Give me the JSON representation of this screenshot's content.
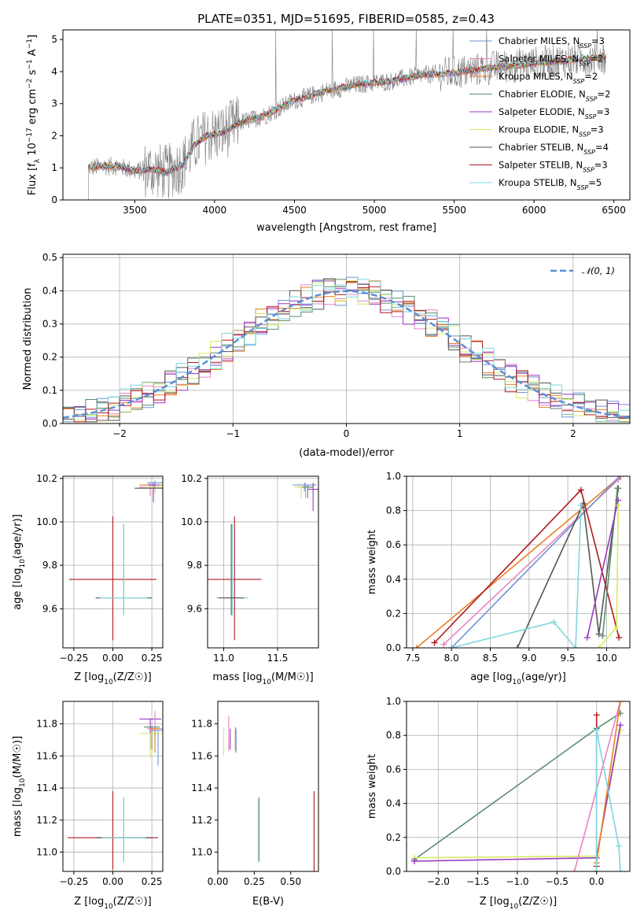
{
  "title": "PLATE=0351, MJD=51695, FIBERID=0585, z=0.43",
  "chart_data": [
    {
      "id": "spectrum",
      "type": "line",
      "xlabel": "wavelength [Angstrom, rest frame]",
      "ylabel": "Flux [f_λ 10^-17 erg cm^-2 s^-1 A^-1]",
      "xlim": [
        3050,
        6600
      ],
      "ylim": [
        0,
        5.3
      ],
      "xticks": [
        3500,
        4000,
        4500,
        5000,
        5500,
        6000,
        6500
      ],
      "yticks": [
        0,
        1,
        2,
        3,
        4,
        5
      ],
      "grid": false,
      "legend_position": "upper right",
      "data_line_color": "#808080",
      "model_continuum": {
        "x": [
          3210,
          3300,
          3400,
          3500,
          3600,
          3700,
          3800,
          3870,
          3950,
          4050,
          4150,
          4300,
          4500,
          4700,
          4900,
          5100,
          5300,
          5500,
          5700,
          5900,
          6100,
          6300,
          6450
        ],
        "y": [
          1.0,
          1.05,
          1.05,
          0.9,
          0.95,
          0.85,
          1.1,
          1.7,
          2.0,
          2.1,
          2.4,
          2.6,
          3.1,
          3.4,
          3.6,
          3.7,
          3.9,
          3.95,
          4.1,
          4.2,
          4.3,
          4.4,
          4.45
        ]
      },
      "series": [
        {
          "name": "Chabrier MILES, N_SSP=3",
          "color": "#6f95d3"
        },
        {
          "name": "Salpeter MILES, N_SSP=2",
          "color": "#e684c4"
        },
        {
          "name": "Kroupa MILES, N_SSP=2",
          "color": "#ea7f26"
        },
        {
          "name": "Chabrier ELODIE, N_SSP=2",
          "color": "#5a8a6a"
        },
        {
          "name": "Salpeter ELODIE, N_SSP=3",
          "color": "#9a38c4"
        },
        {
          "name": "Kroupa ELODIE, N_SSP=3",
          "color": "#d6ea62"
        },
        {
          "name": "Chabrier STELIB, N_SSP=4",
          "color": "#555555"
        },
        {
          "name": "Salpeter STELIB, N_SSP=3",
          "color": "#b2191d"
        },
        {
          "name": "Kroupa STELIB, N_SSP=5",
          "color": "#7fd6dd"
        }
      ]
    },
    {
      "id": "residuals",
      "type": "histogram",
      "xlabel": "(data-model)/error",
      "ylabel": "Normed distribution",
      "xlim": [
        -2.5,
        2.5
      ],
      "ylim": [
        0,
        0.51
      ],
      "xticks": [
        -2,
        -1,
        0,
        1,
        2
      ],
      "yticks": [
        0.0,
        0.1,
        0.2,
        0.3,
        0.4,
        0.5
      ],
      "grid": true,
      "legend_position": "upper right",
      "legend": "N(0,1)",
      "gauss_color": "#5b8fd6",
      "bin_width": 0.1
    },
    {
      "id": "age_vs_Z",
      "type": "errorbar",
      "xlabel": "Z [log10(Z/Z☉)]",
      "ylabel": "age [log10(age/yr)]",
      "xlim": [
        -0.32,
        0.32
      ],
      "ylim": [
        9.42,
        10.21
      ],
      "xticks": [
        -0.25,
        0.0,
        0.25
      ],
      "yticks": [
        9.6,
        9.8,
        10.0,
        10.2
      ],
      "grid": true,
      "points": [
        {
          "x": 0.0,
          "y": 9.735,
          "xerr": 0.28,
          "yerr": [
            0.28,
            0.29
          ],
          "color": "#b2191d"
        },
        {
          "x": 0.07,
          "y": 9.65,
          "xerr": 0.18,
          "yerr": [
            0.08,
            0.34
          ],
          "color": "#555555"
        },
        {
          "x": 0.07,
          "y": 9.65,
          "xerr": 0.15,
          "yerr": [
            0.08,
            0.34
          ],
          "color": "#7fd6dd"
        },
        {
          "x": 0.27,
          "y": 10.17,
          "xerr": 0.1,
          "yerr": [
            0.03,
            0.02
          ],
          "color": "#ea7f26"
        },
        {
          "x": 0.24,
          "y": 10.16,
          "xerr": 0.07,
          "yerr": [
            0.04,
            0.02
          ],
          "color": "#e684c4"
        },
        {
          "x": 0.26,
          "y": 10.17,
          "xerr": 0.04,
          "yerr": [
            0.08,
            0.01
          ],
          "color": "#9a38c4"
        },
        {
          "x": 0.27,
          "y": 10.16,
          "xerr": 0.06,
          "yerr": [
            0.03,
            0.02
          ],
          "color": "#d6ea62"
        },
        {
          "x": 0.25,
          "y": 10.155,
          "xerr": 0.11,
          "yerr": [
            0.0,
            0.0
          ],
          "color": "#555555"
        },
        {
          "x": 0.27,
          "y": 10.18,
          "xerr": 0.05,
          "yerr": [
            0.03,
            0.01
          ],
          "color": "#6f95d3"
        }
      ]
    },
    {
      "id": "age_vs_mass",
      "type": "errorbar",
      "xlabel": "mass [log10(M/M☉)]",
      "ylabel": "",
      "xlim": [
        10.85,
        11.88
      ],
      "ylim": [
        9.42,
        10.21
      ],
      "xticks": [
        11.0,
        11.5
      ],
      "yticks": [
        9.6,
        9.8,
        10.0,
        10.2
      ],
      "grid": true,
      "points": [
        {
          "x": 11.1,
          "y": 9.735,
          "xerr": 0.25,
          "yerr": [
            0.28,
            0.29
          ],
          "color": "#b2191d"
        },
        {
          "x": 11.08,
          "y": 9.65,
          "xerr": 0.15,
          "yerr": [
            0.08,
            0.34
          ],
          "color": "#7fd6dd"
        },
        {
          "x": 11.07,
          "y": 9.65,
          "xerr": 0.12,
          "yerr": [
            0.08,
            0.34
          ],
          "color": "#555555"
        },
        {
          "x": 11.75,
          "y": 10.17,
          "xerr": 0.11,
          "yerr": [
            0.03,
            0.01
          ],
          "color": "#6f95d3"
        },
        {
          "x": 11.76,
          "y": 10.16,
          "xerr": 0.07,
          "yerr": [
            0.05,
            0.02
          ],
          "color": "#e684c4"
        },
        {
          "x": 11.83,
          "y": 10.15,
          "xerr": 0.05,
          "yerr": [
            0.1,
            0.03
          ],
          "color": "#9a38c4"
        },
        {
          "x": 11.72,
          "y": 10.16,
          "xerr": 0.06,
          "yerr": [
            0.05,
            0.02
          ],
          "color": "#d6ea62"
        },
        {
          "x": 11.78,
          "y": 10.16,
          "xerr": 0.05,
          "yerr": [
            0.05,
            0.01
          ],
          "color": "#5a8a6a"
        }
      ]
    },
    {
      "id": "massweight_vs_age",
      "type": "line",
      "xlabel": "age [log10(age/yr)]",
      "ylabel": "mass weight",
      "xlim": [
        7.42,
        10.3
      ],
      "ylim": [
        0,
        1.0
      ],
      "xticks": [
        7.5,
        8.0,
        8.5,
        9.0,
        9.5,
        10.0
      ],
      "yticks": [
        0.0,
        0.2,
        0.4,
        0.6,
        0.8,
        1.0
      ],
      "grid": true,
      "series": [
        {
          "color": "#ea7f26",
          "x": [
            7.55,
            10.18
          ],
          "y": [
            0.0,
            1.0
          ]
        },
        {
          "color": "#e684c4",
          "x": [
            7.9,
            10.15
          ],
          "y": [
            0.02,
            0.98
          ]
        },
        {
          "color": "#6f95d3",
          "x": [
            8.0,
            10.17
          ],
          "y": [
            0.0,
            1.0
          ]
        },
        {
          "color": "#b2191d",
          "x": [
            7.78,
            9.67,
            10.16
          ],
          "y": [
            0.03,
            0.92,
            0.06
          ]
        },
        {
          "color": "#555555",
          "x": [
            8.85,
            9.7,
            9.9,
            10.15
          ],
          "y": [
            0.0,
            0.84,
            0.08,
            0.93
          ]
        },
        {
          "color": "#5a8a6a",
          "x": [
            9.95,
            10.14
          ],
          "y": [
            0.07,
            0.93
          ]
        },
        {
          "color": "#9a38c4",
          "x": [
            9.75,
            10.15
          ],
          "y": [
            0.06,
            0.86
          ]
        },
        {
          "color": "#d6ea62",
          "x": [
            9.9,
            10.13,
            10.15
          ],
          "y": [
            0.0,
            0.12,
            0.83
          ]
        },
        {
          "color": "#7fd6dd",
          "x": [
            8.0,
            9.32,
            9.6,
            9.67
          ],
          "y": [
            0.0,
            0.15,
            0.0,
            0.83
          ]
        }
      ]
    },
    {
      "id": "mass_vs_Z",
      "type": "errorbar",
      "xlabel": "Z [log10(Z/Z☉)]",
      "ylabel": "mass [log10(M/M☉)]",
      "xlim": [
        -0.32,
        0.32
      ],
      "ylim": [
        10.88,
        11.94
      ],
      "xticks": [
        -0.25,
        0.0,
        0.25
      ],
      "yticks": [
        11.0,
        11.2,
        11.4,
        11.6,
        11.8
      ],
      "grid": true,
      "points": [
        {
          "x": 0.0,
          "y": 11.09,
          "xerr": 0.29,
          "yerr": [
            0.2,
            0.29
          ],
          "color": "#b2191d"
        },
        {
          "x": 0.07,
          "y": 11.09,
          "xerr": 0.18,
          "yerr": [
            0.15,
            0.25
          ],
          "color": "#555555"
        },
        {
          "x": 0.07,
          "y": 11.09,
          "xerr": 0.14,
          "yerr": [
            0.15,
            0.25
          ],
          "color": "#7fd6dd"
        },
        {
          "x": 0.24,
          "y": 11.83,
          "xerr": 0.07,
          "yerr": [
            0.18,
            0.0
          ],
          "color": "#9a38c4"
        },
        {
          "x": 0.27,
          "y": 11.77,
          "xerr": 0.05,
          "yerr": [
            0.1,
            0.11
          ],
          "color": "#e684c4"
        },
        {
          "x": 0.25,
          "y": 11.78,
          "xerr": 0.05,
          "yerr": [
            0.14,
            0.0
          ],
          "color": "#5a8a6a"
        },
        {
          "x": 0.29,
          "y": 11.76,
          "xerr": 0.04,
          "yerr": [
            0.22,
            0.0
          ],
          "color": "#6f95d3"
        },
        {
          "x": 0.24,
          "y": 11.74,
          "xerr": 0.07,
          "yerr": [
            0.15,
            0.0
          ],
          "color": "#d6ea62"
        },
        {
          "x": 0.27,
          "y": 11.77,
          "xerr": 0.03,
          "yerr": [
            0.15,
            0.0
          ],
          "color": "#ea7f26"
        }
      ]
    },
    {
      "id": "mass_vs_EBV",
      "type": "errorbar",
      "xlabel": "E(B-V)",
      "ylabel": "",
      "xlim": [
        0.0,
        0.69
      ],
      "ylim": [
        10.88,
        11.94
      ],
      "xticks": [
        0.0,
        0.25,
        0.5
      ],
      "yticks": [
        11.0,
        11.2,
        11.4,
        11.6,
        11.8
      ],
      "grid": false,
      "points": [
        {
          "x": 0.04,
          "y": 11.7,
          "xerr": 0.0,
          "yerr": [
            0.1,
            0.07
          ],
          "color": "#d6ea62"
        },
        {
          "x": 0.075,
          "y": 11.75,
          "xerr": 0.0,
          "yerr": [
            0.12,
            0.1
          ],
          "color": "#e684c4"
        },
        {
          "x": 0.085,
          "y": 11.72,
          "xerr": 0.0,
          "yerr": [
            0.08,
            0.05
          ],
          "color": "#9a38c4"
        },
        {
          "x": 0.12,
          "y": 11.7,
          "xerr": 0.0,
          "yerr": [
            0.07,
            0.08
          ],
          "color": "#ea7f26"
        },
        {
          "x": 0.125,
          "y": 11.68,
          "xerr": 0.0,
          "yerr": [
            0.06,
            0.09
          ],
          "color": "#6f95d3"
        },
        {
          "x": 0.28,
          "y": 11.14,
          "xerr": 0.0,
          "yerr": [
            0.2,
            0.2
          ],
          "color": "#5a8a6a"
        },
        {
          "x": 0.285,
          "y": 11.14,
          "xerr": 0.0,
          "yerr": [
            0.2,
            0.2
          ],
          "color": "#7fd6dd"
        },
        {
          "x": 0.66,
          "y": 11.13,
          "xerr": 0.0,
          "yerr": [
            0.25,
            0.25
          ],
          "color": "#b2191d"
        }
      ]
    },
    {
      "id": "massweight_vs_Z",
      "type": "line",
      "xlabel": "Z [log10(Z/Z☉)]",
      "ylabel": "mass weight",
      "xlim": [
        -2.4,
        0.42
      ],
      "ylim": [
        0,
        1.0
      ],
      "xticks": [
        -2.0,
        -1.5,
        -1.0,
        -0.5,
        0.0
      ],
      "yticks": [
        0.0,
        0.2,
        0.4,
        0.6,
        0.8,
        1.0
      ],
      "grid": true,
      "series": [
        {
          "color": "#5a8a6a",
          "x": [
            -2.3,
            0.0,
            0.3
          ],
          "y": [
            0.07,
            0.84,
            0.93
          ]
        },
        {
          "color": "#d6ea62",
          "x": [
            -2.3,
            0.0,
            0.3
          ],
          "y": [
            0.08,
            0.09,
            0.83
          ]
        },
        {
          "color": "#9a38c4",
          "x": [
            -2.3,
            0.0,
            0.3
          ],
          "y": [
            0.06,
            0.08,
            0.86
          ]
        },
        {
          "color": "#e684c4",
          "x": [
            -0.28,
            0.3
          ],
          "y": [
            0.0,
            1.0
          ]
        },
        {
          "color": "#ea7f26",
          "x": [
            0.0,
            0.0,
            0.3
          ],
          "y": [
            0.0,
            0.05,
            1.0
          ]
        },
        {
          "color": "#b2191d",
          "x": [
            0.0,
            0.0
          ],
          "y": [
            0.03,
            0.92
          ]
        },
        {
          "color": "#7fd6dd",
          "x": [
            0.0,
            0.0,
            0.28,
            0.3
          ],
          "y": [
            0.0,
            0.83,
            0.15,
            0.0
          ]
        }
      ]
    }
  ]
}
